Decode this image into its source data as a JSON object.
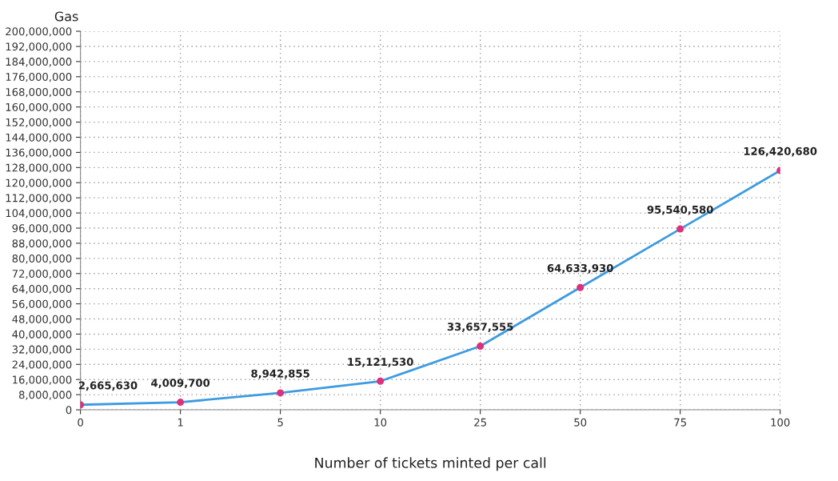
{
  "chart_data": {
    "type": "line",
    "xlabel": "Number of tickets minted per call",
    "ylabel": "Gas",
    "categories": [
      "0",
      "1",
      "5",
      "10",
      "25",
      "50",
      "75",
      "100"
    ],
    "series": [
      {
        "color": "#3d9be0",
        "colors": [
          "#e0307a",
          "#e0307a",
          "#e0307a",
          "#e0307a",
          "#e0307a",
          "#e0307a",
          "#e0307a",
          "#e0307a"
        ],
        "values": [
          2665630,
          4009700,
          8942855,
          15121530,
          33657555,
          64633930,
          95540580,
          126420680
        ],
        "value_labels": [
          "2,665,630",
          "4,009,700",
          "8,942,855",
          "15,121,530",
          "33,657,555",
          "64,633,930",
          "95,540,580",
          "126,420,680"
        ]
      }
    ],
    "ylim": [
      0,
      200000000
    ],
    "yticks": [
      0,
      {
        "value": 8000000,
        "label": "8,000,000"
      },
      {
        "value": 16000000,
        "label": "16,000,000"
      },
      {
        "value": 24000000,
        "label": "24,000,000"
      },
      {
        "value": 32000000,
        "label": "32,000,000"
      },
      {
        "value": 40000000,
        "label": "40,000,000"
      },
      {
        "value": 48000000,
        "label": "48,000,000"
      },
      {
        "value": 56000000,
        "label": "56,000,000"
      },
      {
        "value": 64000000,
        "label": "64,000,000"
      },
      {
        "value": 72000000,
        "label": "72,000,000"
      },
      {
        "value": 80000000,
        "label": "80,000,000"
      },
      {
        "value": 88000000,
        "label": "88,000,000"
      },
      {
        "value": 96000000,
        "label": "96,000,000"
      },
      {
        "value": 104000000,
        "label": "104,000,000"
      },
      {
        "value": 112000000,
        "label": "112,000,000"
      },
      {
        "value": 120000000,
        "label": "120,000,000"
      },
      {
        "value": 128000000,
        "label": "128,000,000"
      },
      {
        "value": 136000000,
        "label": "136,000,000"
      },
      {
        "value": 144000000,
        "label": "144,000,000"
      },
      {
        "value": 152000000,
        "label": "152,000,000"
      },
      {
        "value": 160000000,
        "label": "160,000,000"
      },
      {
        "value": 168000000,
        "label": "168,000,000"
      },
      {
        "value": 176000000,
        "label": "176,000,000"
      },
      {
        "value": 184000000,
        "label": "184,000,000"
      },
      {
        "value": 192000000,
        "label": "192,000,000"
      },
      {
        "value": 200000000,
        "label": "200,000,000"
      }
    ],
    "grid": true,
    "marker": "circle",
    "line_style": "solid",
    "legend": false
  }
}
